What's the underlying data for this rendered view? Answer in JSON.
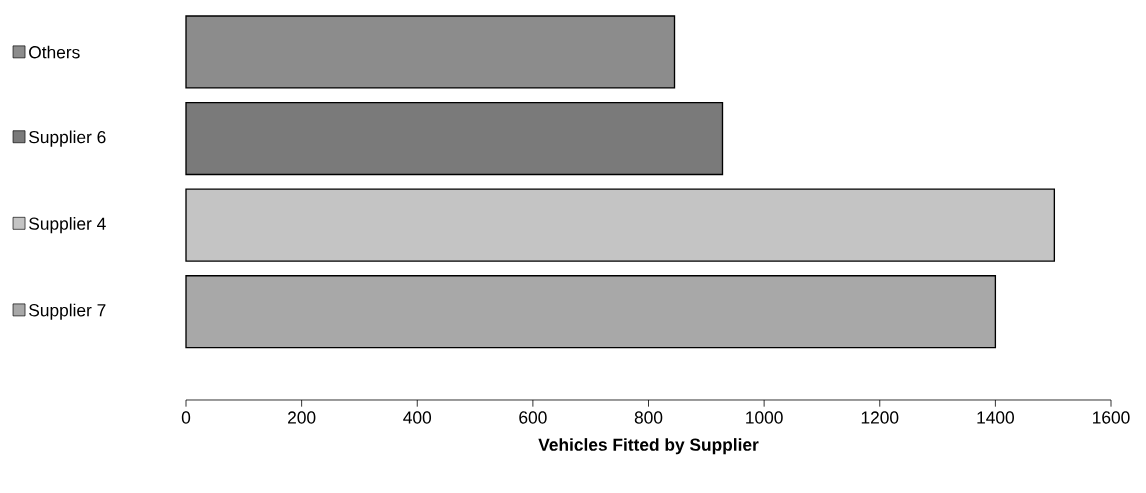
{
  "chart_data": {
    "type": "bar",
    "orientation": "horizontal",
    "xlabel": "Vehicles Fitted by Supplier",
    "categories": [
      "Others",
      "Supplier 6",
      "Supplier 4",
      "Supplier 7"
    ],
    "values": [
      845,
      928,
      1502,
      1400
    ],
    "colors": [
      "#8c8c8c",
      "#7a7a7a",
      "#c4c4c4",
      "#a8a8a8"
    ],
    "xlim": [
      0,
      1600
    ],
    "xticks": [
      0,
      200,
      400,
      600,
      800,
      1000,
      1200,
      1400,
      1600
    ]
  }
}
